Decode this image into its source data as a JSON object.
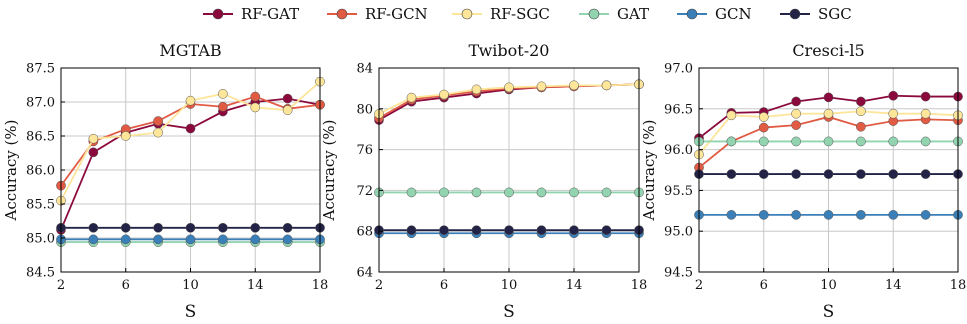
{
  "legend": [
    {
      "label": "RF-GAT",
      "color": "#8b0a3d"
    },
    {
      "label": "RF-GCN",
      "color": "#e15b44"
    },
    {
      "label": "RF-SGC",
      "color": "#fde59a"
    },
    {
      "label": "GAT",
      "color": "#92d3b0"
    },
    {
      "label": "GCN",
      "color": "#3a7fb8"
    },
    {
      "label": "SGC",
      "color": "#232347"
    }
  ],
  "chart_data": [
    {
      "type": "line",
      "title": "MGTAB",
      "xlabel": "S",
      "ylabel": "Accuracy (%)",
      "x": [
        2,
        4,
        6,
        8,
        10,
        12,
        14,
        16,
        18
      ],
      "xlim": [
        2,
        18
      ],
      "ylim": [
        84.5,
        87.5
      ],
      "xticks": [
        2,
        6,
        10,
        14,
        18
      ],
      "yticks": [
        84.5,
        85.0,
        85.5,
        86.0,
        86.5,
        87.0,
        87.5
      ],
      "ytick_labels": [
        "84.5",
        "85.0",
        "85.5",
        "86.0",
        "86.5",
        "87.0",
        "87.5"
      ],
      "grid": true,
      "series": [
        {
          "name": "RF-GAT",
          "values": [
            85.12,
            86.26,
            86.55,
            86.68,
            86.61,
            86.86,
            87.0,
            87.05,
            86.96
          ]
        },
        {
          "name": "RF-GCN",
          "values": [
            85.77,
            86.42,
            86.6,
            86.72,
            86.97,
            86.93,
            87.08,
            86.9,
            86.96
          ]
        },
        {
          "name": "RF-SGC",
          "values": [
            85.55,
            86.46,
            86.5,
            86.55,
            87.02,
            87.12,
            86.92,
            86.88,
            87.3
          ]
        },
        {
          "name": "GAT",
          "values": [
            84.94,
            84.94,
            84.94,
            84.94,
            84.94,
            84.94,
            84.94,
            84.94,
            84.94
          ]
        },
        {
          "name": "GCN",
          "values": [
            84.98,
            84.98,
            84.98,
            84.98,
            84.98,
            84.98,
            84.98,
            84.98,
            84.98
          ]
        },
        {
          "name": "SGC",
          "values": [
            85.15,
            85.15,
            85.15,
            85.15,
            85.15,
            85.15,
            85.15,
            85.15,
            85.15
          ]
        }
      ]
    },
    {
      "type": "line",
      "title": "Twibot-20",
      "xlabel": "S",
      "ylabel": "Accuracy (%)",
      "x": [
        2,
        4,
        6,
        8,
        10,
        12,
        14,
        16,
        18
      ],
      "xlim": [
        2,
        18
      ],
      "ylim": [
        64,
        84
      ],
      "xticks": [
        2,
        6,
        10,
        14,
        18
      ],
      "yticks": [
        64,
        68,
        72,
        76,
        80,
        84
      ],
      "ytick_labels": [
        "64",
        "68",
        "72",
        "76",
        "80",
        "84"
      ],
      "grid": true,
      "series": [
        {
          "name": "RF-GAT",
          "values": [
            78.9,
            80.7,
            81.1,
            81.5,
            81.9,
            82.1,
            82.2,
            82.3,
            82.4
          ]
        },
        {
          "name": "RF-GCN",
          "values": [
            79.1,
            80.9,
            81.3,
            81.7,
            82.0,
            82.1,
            82.2,
            82.3,
            82.4
          ]
        },
        {
          "name": "RF-SGC",
          "values": [
            79.5,
            81.1,
            81.4,
            81.9,
            82.1,
            82.2,
            82.3,
            82.3,
            82.4
          ]
        },
        {
          "name": "GAT",
          "values": [
            71.8,
            71.8,
            71.8,
            71.8,
            71.8,
            71.8,
            71.8,
            71.8,
            71.8
          ]
        },
        {
          "name": "GCN",
          "values": [
            67.8,
            67.8,
            67.8,
            67.8,
            67.8,
            67.8,
            67.8,
            67.8,
            67.8
          ]
        },
        {
          "name": "SGC",
          "values": [
            68.1,
            68.1,
            68.1,
            68.1,
            68.1,
            68.1,
            68.1,
            68.1,
            68.1
          ]
        }
      ]
    },
    {
      "type": "line",
      "title": "Cresci-l5",
      "xlabel": "S",
      "ylabel": "Accuracy (%)",
      "x": [
        2,
        4,
        6,
        8,
        10,
        12,
        14,
        16,
        18
      ],
      "xlim": [
        2,
        18
      ],
      "ylim": [
        94.5,
        97.0
      ],
      "xticks": [
        2,
        6,
        10,
        14,
        18
      ],
      "yticks": [
        94.5,
        95.0,
        95.5,
        96.0,
        96.5,
        97.0
      ],
      "ytick_labels": [
        "94.5",
        "95.0",
        "95.5",
        "96.0",
        "96.5",
        "97.0"
      ],
      "grid": true,
      "series": [
        {
          "name": "RF-GAT",
          "values": [
            96.14,
            96.45,
            96.46,
            96.59,
            96.64,
            96.59,
            96.66,
            96.65,
            96.65
          ]
        },
        {
          "name": "RF-GCN",
          "values": [
            95.78,
            96.1,
            96.27,
            96.3,
            96.4,
            96.28,
            96.35,
            96.37,
            96.36
          ]
        },
        {
          "name": "RF-SGC",
          "values": [
            95.94,
            96.42,
            96.4,
            96.44,
            96.44,
            96.47,
            96.44,
            96.44,
            96.42
          ]
        },
        {
          "name": "GAT",
          "values": [
            96.1,
            96.1,
            96.1,
            96.1,
            96.1,
            96.1,
            96.1,
            96.1,
            96.1
          ]
        },
        {
          "name": "GCN",
          "values": [
            95.2,
            95.2,
            95.2,
            95.2,
            95.2,
            95.2,
            95.2,
            95.2,
            95.2
          ]
        },
        {
          "name": "SGC",
          "values": [
            95.7,
            95.7,
            95.7,
            95.7,
            95.7,
            95.7,
            95.7,
            95.7,
            95.7
          ]
        }
      ]
    }
  ]
}
